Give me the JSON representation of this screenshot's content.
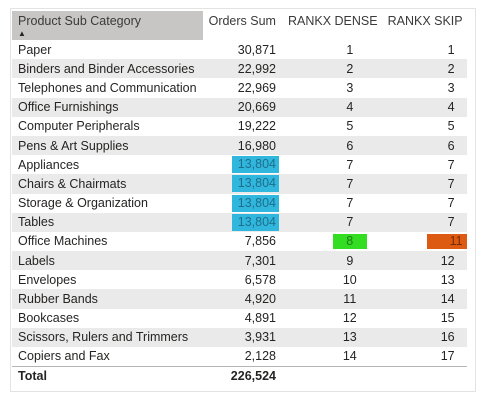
{
  "table": {
    "columns": {
      "category": "Product Sub Category",
      "orders": "Orders Sum",
      "dense": "RANKX DENSE",
      "skip": "RANKX SKIP"
    },
    "sort_icon": "sort-ascending-triangle",
    "rows": [
      {
        "category": "Paper",
        "orders": "30,871",
        "dense": "1",
        "skip": "1"
      },
      {
        "category": "Binders and Binder Accessories",
        "orders": "22,992",
        "dense": "2",
        "skip": "2"
      },
      {
        "category": "Telephones and Communication",
        "orders": "22,969",
        "dense": "3",
        "skip": "3"
      },
      {
        "category": "Office Furnishings",
        "orders": "20,669",
        "dense": "4",
        "skip": "4"
      },
      {
        "category": "Computer Peripherals",
        "orders": "19,222",
        "dense": "5",
        "skip": "5"
      },
      {
        "category": "Pens & Art Supplies",
        "orders": "16,980",
        "dense": "6",
        "skip": "6"
      },
      {
        "category": "Appliances",
        "orders": "13,804",
        "dense": "7",
        "skip": "7"
      },
      {
        "category": "Chairs & Chairmats",
        "orders": "13,804",
        "dense": "7",
        "skip": "7"
      },
      {
        "category": "Storage & Organization",
        "orders": "13,804",
        "dense": "7",
        "skip": "7"
      },
      {
        "category": "Tables",
        "orders": "13,804",
        "dense": "7",
        "skip": "7"
      },
      {
        "category": "Office Machines",
        "orders": "7,856",
        "dense": "8",
        "skip": "11"
      },
      {
        "category": "Labels",
        "orders": "7,301",
        "dense": "9",
        "skip": "12"
      },
      {
        "category": "Envelopes",
        "orders": "6,578",
        "dense": "10",
        "skip": "13"
      },
      {
        "category": "Rubber Bands",
        "orders": "4,920",
        "dense": "11",
        "skip": "14"
      },
      {
        "category": "Bookcases",
        "orders": "4,891",
        "dense": "12",
        "skip": "15"
      },
      {
        "category": "Scissors, Rulers and Trimmers",
        "orders": "3,931",
        "dense": "13",
        "skip": "16"
      },
      {
        "category": "Copiers and Fax",
        "orders": "2,128",
        "dense": "14",
        "skip": "17"
      }
    ],
    "total": {
      "label": "Total",
      "orders": "226,524"
    }
  },
  "highlights": {
    "tied_orders_color": "#31b7dd",
    "dense_after_tie_color": "#33dd22",
    "skip_after_tie_color": "#dd5a12"
  }
}
